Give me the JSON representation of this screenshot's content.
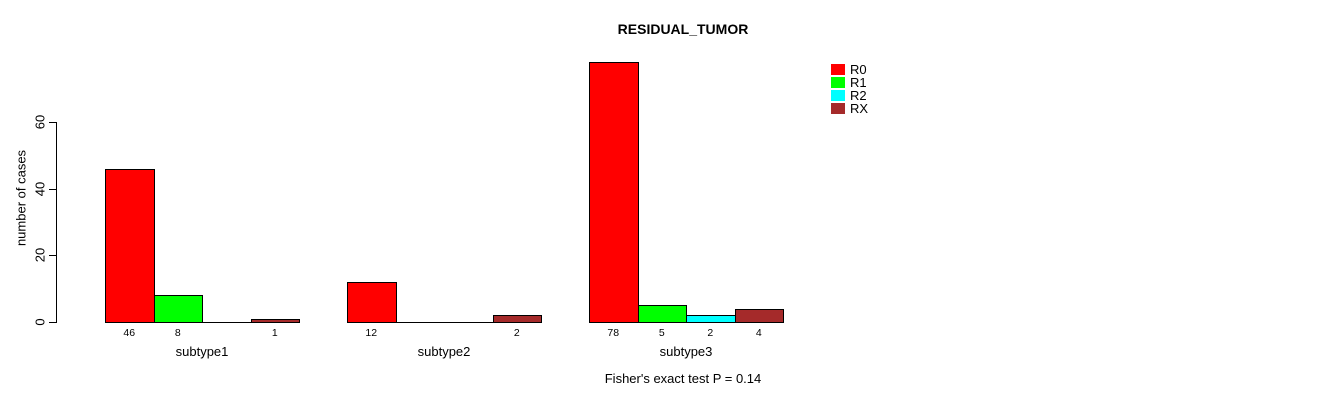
{
  "chart_data": {
    "type": "bar",
    "title": "RESIDUAL_TUMOR",
    "ylabel": "number of cases",
    "xlabel": "",
    "categories": [
      "subtype1",
      "subtype2",
      "subtype3"
    ],
    "series": [
      {
        "name": "R0",
        "color": "#ff0000",
        "values": [
          46,
          12,
          78
        ]
      },
      {
        "name": "R1",
        "color": "#00ff00",
        "values": [
          8,
          0,
          5
        ]
      },
      {
        "name": "R2",
        "color": "#00ffff",
        "values": [
          0,
          0,
          2
        ]
      },
      {
        "name": "RX",
        "color": "#a52a2a",
        "values": [
          1,
          2,
          4
        ]
      }
    ],
    "yticks": [
      "0",
      "20",
      "40",
      "60"
    ],
    "ylim": [
      0,
      78
    ],
    "grid": false,
    "legend_position": "right",
    "bar_value_labels": "shown under each nonzero bar",
    "annotation": "Fisher's exact test P = 0.14",
    "background_color": "#ffffff",
    "text_color": "#000000"
  }
}
